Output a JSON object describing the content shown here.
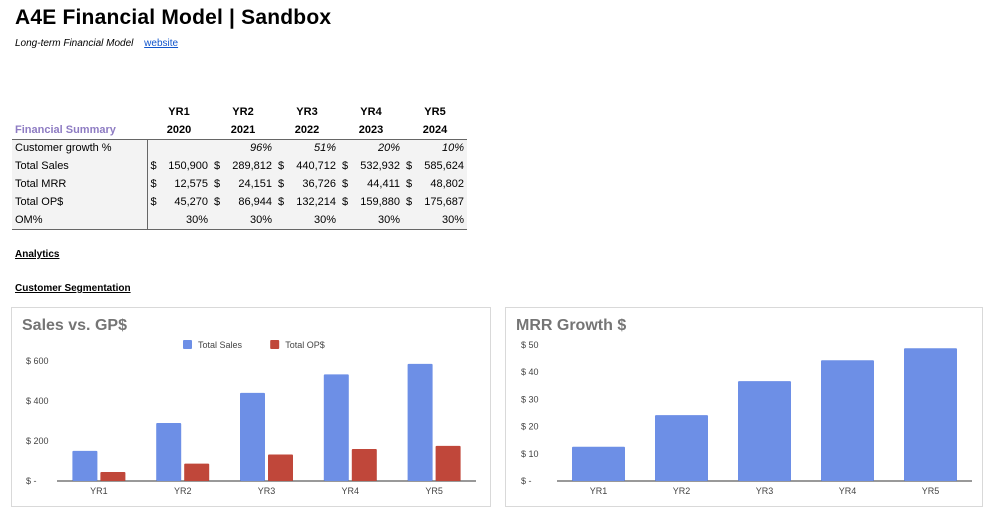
{
  "header": {
    "title": "A4E Financial Model | Sandbox",
    "subtitle": "Long-term Financial Model",
    "link": "website"
  },
  "summary": {
    "section_label": "Financial Summary",
    "years": [
      {
        "label": "YR1",
        "year": "2020"
      },
      {
        "label": "YR2",
        "year": "2021"
      },
      {
        "label": "YR3",
        "year": "2022"
      },
      {
        "label": "YR4",
        "year": "2023"
      },
      {
        "label": "YR5",
        "year": "2024"
      }
    ],
    "growth": {
      "label": "Customer growth %",
      "values": [
        "",
        "96%",
        "51%",
        "20%",
        "10%"
      ]
    },
    "sales": {
      "label": "Total Sales",
      "values": [
        "150,900",
        "289,812",
        "440,712",
        "532,932",
        "585,624"
      ]
    },
    "mrr": {
      "label": "Total MRR",
      "values": [
        "12,575",
        "24,151",
        "36,726",
        "44,411",
        "48,802"
      ]
    },
    "ops": {
      "label": "Total OP$",
      "values": [
        "45,270",
        "86,944",
        "132,214",
        "159,880",
        "175,687"
      ]
    },
    "om": {
      "label": "OM%",
      "values": [
        "30%",
        "30%",
        "30%",
        "30%",
        "30%"
      ]
    },
    "currency": "$"
  },
  "sections": {
    "analytics": "Analytics",
    "segmentation": "Customer Segmentation"
  },
  "chart_data": [
    {
      "type": "bar",
      "title": "Sales vs. GP$",
      "categories": [
        "YR1",
        "YR2",
        "YR3",
        "YR4",
        "YR5"
      ],
      "series": [
        {
          "name": "Total Sales",
          "values": [
            150.9,
            289.8,
            440.7,
            532.9,
            585.6
          ],
          "color": "#6d8fe6"
        },
        {
          "name": "Total OP$",
          "values": [
            45.3,
            86.9,
            132.2,
            159.9,
            175.7
          ],
          "color": "#c0473a"
        }
      ],
      "ylim": [
        0,
        600
      ],
      "yticks": [
        0,
        200,
        400,
        600
      ],
      "ytick_labels": [
        "$ -",
        "$ 200",
        "$ 400",
        "$ 600"
      ],
      "legend": "top",
      "grid": false
    },
    {
      "type": "bar",
      "title": "MRR Growth $",
      "categories": [
        "YR1",
        "YR2",
        "YR3",
        "YR4",
        "YR5"
      ],
      "series": [
        {
          "values": [
            12.6,
            24.2,
            36.7,
            44.4,
            48.8
          ],
          "color": "#6d8fe6"
        }
      ],
      "ylim": [
        0,
        50
      ],
      "yticks": [
        0,
        10,
        20,
        30,
        40,
        50
      ],
      "ytick_labels": [
        "$ -",
        "$ 10",
        "$ 20",
        "$ 30",
        "$ 40",
        "$ 50"
      ],
      "legend": "none",
      "grid": false
    }
  ]
}
